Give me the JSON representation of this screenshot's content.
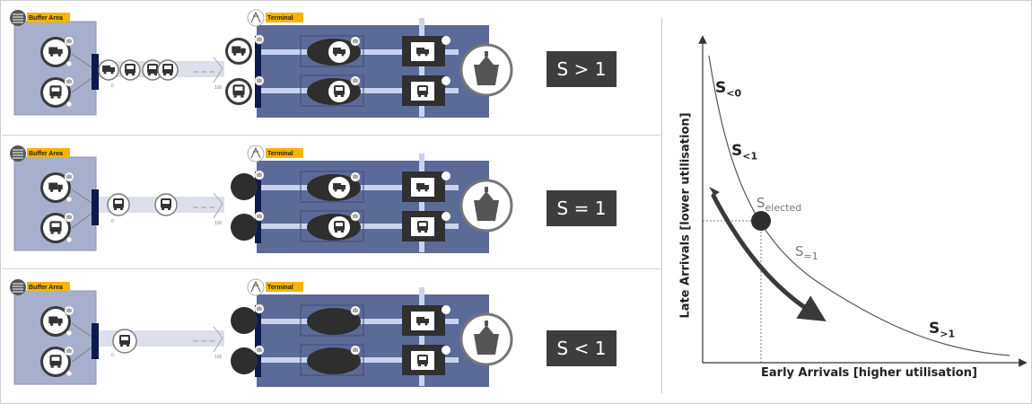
{
  "panels": [
    {
      "buffer_tag": "Buffer Area",
      "terminal_tag": "Terminal",
      "scale_start": "0",
      "scale_end": "100",
      "s_label": "S > 1"
    },
    {
      "buffer_tag": "Buffer Area",
      "terminal_tag": "Terminal",
      "scale_start": "0",
      "scale_end": "100",
      "s_label": "S = 1"
    },
    {
      "buffer_tag": "Buffer Area",
      "terminal_tag": "Terminal",
      "scale_start": "0",
      "scale_end": "100",
      "s_label": "S < 1"
    }
  ],
  "chart": {
    "ylabel": "Late Arrivals [lower utilisation]",
    "xlabel": "Early Arrivals [higher utilisation]",
    "curve_labels": {
      "s_lt0_base": "S",
      "s_lt0_sub": "<0",
      "s_lt1_base": "S",
      "s_lt1_sub": "<1",
      "s_elected_base": "S",
      "s_elected_sub": "elected",
      "s_eq1_base": "S",
      "s_eq1_sub": "=1",
      "s_gt1_base": "S",
      "s_gt1_sub": ">1"
    }
  },
  "colors": {
    "buffer_fill": "#a8afcc",
    "terminal_fill": "#5c6a98",
    "dark_box": "#303030",
    "accent_tag": "#f5b400",
    "navy_bar": "#0d1a4d",
    "s_box": "#3d3d3d"
  },
  "icons": [
    "truck-icon",
    "bus-icon",
    "ship-icon",
    "hand-icon",
    "crane-icon",
    "layers-icon"
  ]
}
